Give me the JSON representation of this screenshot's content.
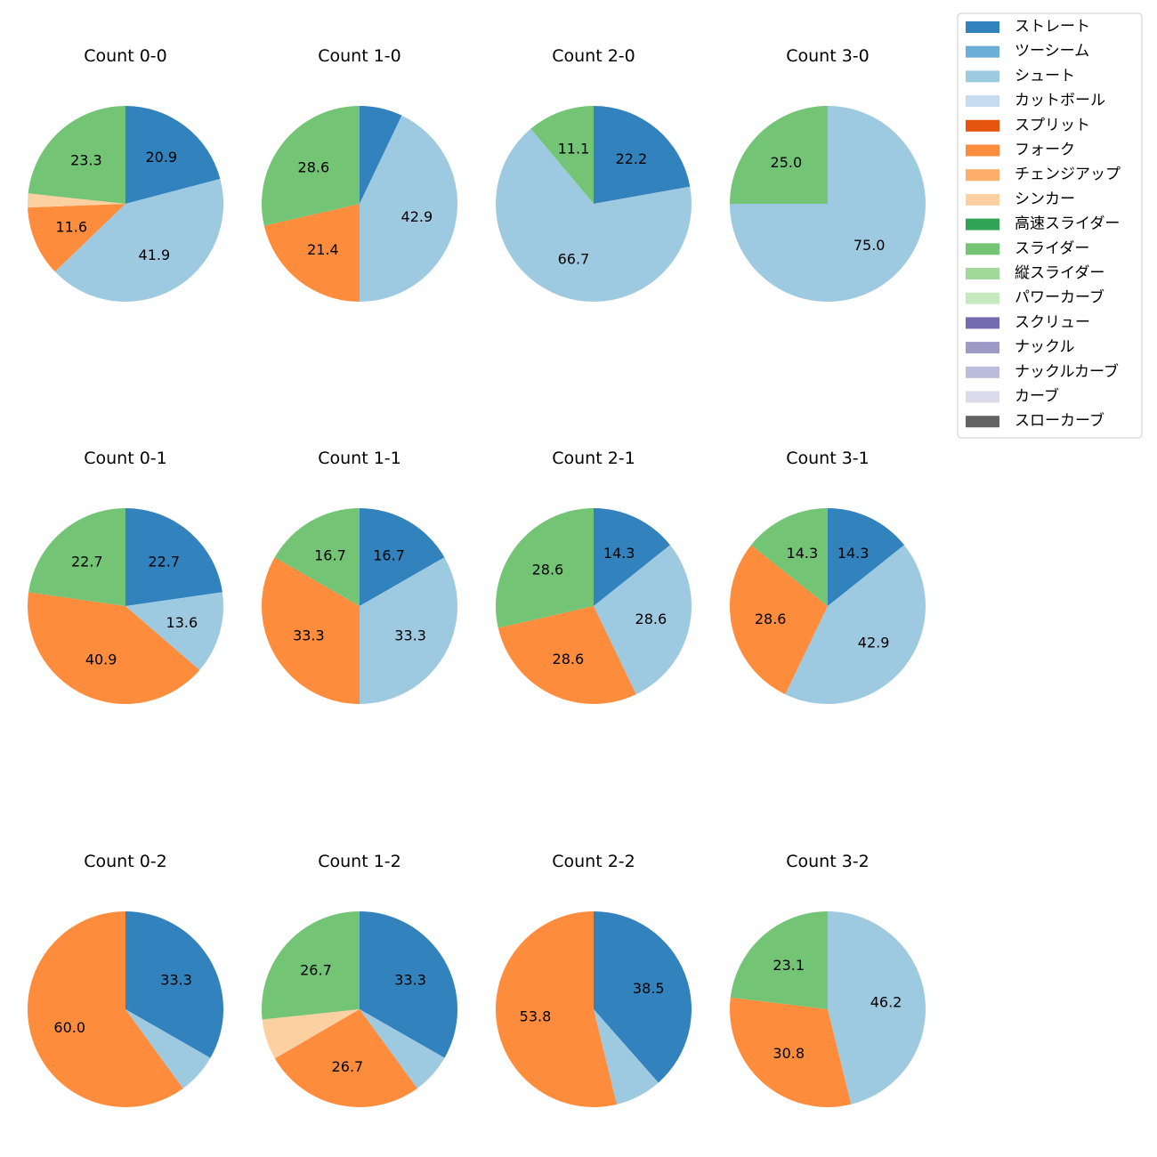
{
  "chart_data": {
    "type": "pie",
    "legend_placement": "top-right",
    "pitch_types": [
      {
        "name": "ストレート",
        "color": "#3182bd"
      },
      {
        "name": "ツーシーム",
        "color": "#6baed6"
      },
      {
        "name": "シュート",
        "color": "#9ecae1"
      },
      {
        "name": "カットボール",
        "color": "#c6dbef"
      },
      {
        "name": "スプリット",
        "color": "#e6550d"
      },
      {
        "name": "フォーク",
        "color": "#fd8d3c"
      },
      {
        "name": "チェンジアップ",
        "color": "#fdae6b"
      },
      {
        "name": "シンカー",
        "color": "#fdd0a2"
      },
      {
        "name": "高速スライダー",
        "color": "#31a354"
      },
      {
        "name": "スライダー",
        "color": "#74c476"
      },
      {
        "name": "縦スライダー",
        "color": "#a1d99b"
      },
      {
        "name": "パワーカーブ",
        "color": "#c7e9c0"
      },
      {
        "name": "スクリュー",
        "color": "#756bb1"
      },
      {
        "name": "ナックル",
        "color": "#9e9ac8"
      },
      {
        "name": "ナックルカーブ",
        "color": "#bcbddc"
      },
      {
        "name": "カーブ",
        "color": "#dadaeb"
      },
      {
        "name": "スローカーブ",
        "color": "#636363"
      }
    ],
    "pies": [
      {
        "title": "Count 0-0",
        "slices": [
          {
            "type": "ストレート",
            "value": 20.9
          },
          {
            "type": "シュート",
            "value": 41.9
          },
          {
            "type": "フォーク",
            "value": 11.6
          },
          {
            "type": "シンカー",
            "value": 2.3,
            "hide_label": true
          },
          {
            "type": "スライダー",
            "value": 23.3
          }
        ]
      },
      {
        "title": "Count 1-0",
        "slices": [
          {
            "type": "ストレート",
            "value": 7.1,
            "hide_label": true
          },
          {
            "type": "シュート",
            "value": 42.9
          },
          {
            "type": "フォーク",
            "value": 21.4
          },
          {
            "type": "スライダー",
            "value": 28.6
          }
        ]
      },
      {
        "title": "Count 2-0",
        "slices": [
          {
            "type": "ストレート",
            "value": 22.2
          },
          {
            "type": "シュート",
            "value": 66.7
          },
          {
            "type": "スライダー",
            "value": 11.1
          }
        ]
      },
      {
        "title": "Count 3-0",
        "slices": [
          {
            "type": "シュート",
            "value": 75.0
          },
          {
            "type": "スライダー",
            "value": 25.0
          }
        ]
      },
      {
        "title": "Count 0-1",
        "slices": [
          {
            "type": "ストレート",
            "value": 22.7
          },
          {
            "type": "シュート",
            "value": 13.6
          },
          {
            "type": "フォーク",
            "value": 40.9
          },
          {
            "type": "スライダー",
            "value": 22.7
          }
        ]
      },
      {
        "title": "Count 1-1",
        "slices": [
          {
            "type": "ストレート",
            "value": 16.7
          },
          {
            "type": "シュート",
            "value": 33.3
          },
          {
            "type": "フォーク",
            "value": 33.3
          },
          {
            "type": "スライダー",
            "value": 16.7
          }
        ]
      },
      {
        "title": "Count 2-1",
        "slices": [
          {
            "type": "ストレート",
            "value": 14.3
          },
          {
            "type": "シュート",
            "value": 28.6
          },
          {
            "type": "フォーク",
            "value": 28.6
          },
          {
            "type": "スライダー",
            "value": 28.6
          }
        ]
      },
      {
        "title": "Count 3-1",
        "slices": [
          {
            "type": "ストレート",
            "value": 14.3
          },
          {
            "type": "シュート",
            "value": 42.9
          },
          {
            "type": "フォーク",
            "value": 28.6
          },
          {
            "type": "スライダー",
            "value": 14.3
          }
        ]
      },
      {
        "title": "Count 0-2",
        "slices": [
          {
            "type": "ストレート",
            "value": 33.3
          },
          {
            "type": "シュート",
            "value": 6.7,
            "hide_label": true
          },
          {
            "type": "フォーク",
            "value": 60.0
          }
        ]
      },
      {
        "title": "Count 1-2",
        "slices": [
          {
            "type": "ストレート",
            "value": 33.3
          },
          {
            "type": "シュート",
            "value": 6.7,
            "hide_label": true
          },
          {
            "type": "フォーク",
            "value": 26.7
          },
          {
            "type": "シンカー",
            "value": 6.7,
            "hide_label": true
          },
          {
            "type": "スライダー",
            "value": 26.7
          }
        ]
      },
      {
        "title": "Count 2-2",
        "slices": [
          {
            "type": "ストレート",
            "value": 38.5
          },
          {
            "type": "シュート",
            "value": 7.7,
            "hide_label": true
          },
          {
            "type": "フォーク",
            "value": 53.8
          }
        ]
      },
      {
        "title": "Count 3-2",
        "slices": [
          {
            "type": "シュート",
            "value": 46.2
          },
          {
            "type": "フォーク",
            "value": 30.8
          },
          {
            "type": "スライダー",
            "value": 23.1
          }
        ]
      }
    ]
  }
}
